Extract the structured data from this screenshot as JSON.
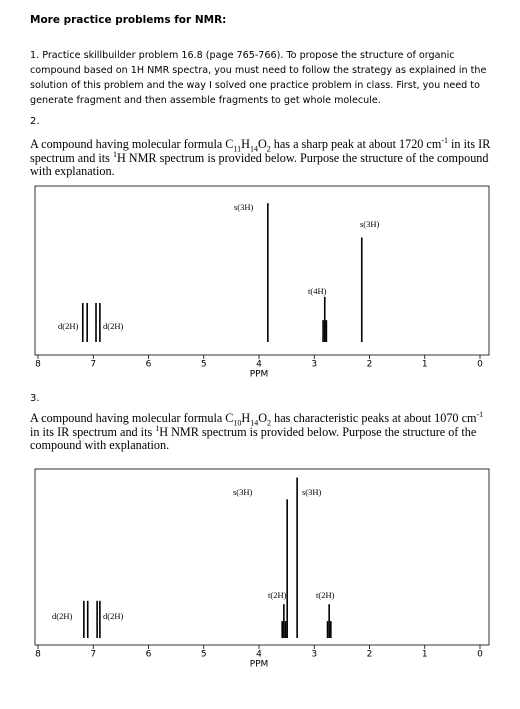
{
  "header": {
    "title": "More practice problems for NMR:"
  },
  "problem1": {
    "text": "1. Practice skillbuilder problem 16.8 (page 765-766).  To propose the structure of organic compound based on 1H NMR spectra, you must need to follow the strategy as explained in the solution of this problem and the way I solved one practice problem in class. First, you need to generate fragment and then assemble fragments to get whole molecule."
  },
  "problem2": {
    "number": "2.",
    "segments": [
      {
        "text": "A compound having molecular formula C"
      },
      {
        "text": "11",
        "style": "sub"
      },
      {
        "text": "H"
      },
      {
        "text": "14",
        "style": "sub"
      },
      {
        "text": "O"
      },
      {
        "text": "2",
        "style": "sub"
      },
      {
        "text": " has a sharp peak at about 1720 cm"
      },
      {
        "text": "-1",
        "style": "sup"
      },
      {
        "text": " in its IR spectrum and its "
      },
      {
        "text": "1",
        "style": "sup"
      },
      {
        "text": "H NMR spectrum is provided below. Purpose the structure of the compound with explanation."
      }
    ],
    "chart_data": {
      "type": "stem",
      "xlabel": "PPM",
      "xlim": [
        8,
        0
      ],
      "xticks": [
        8,
        7,
        6,
        5,
        4,
        3,
        2,
        1,
        0
      ],
      "ylim": [
        0,
        100
      ],
      "color": "#000000",
      "peaks": [
        {
          "label": "d(2H)",
          "ppm": [
            7.19,
            7.11
          ],
          "intensity": [
            25,
            25
          ]
        },
        {
          "label": "d(2H)",
          "ppm": [
            6.95,
            6.88
          ],
          "intensity": [
            25,
            25
          ]
        },
        {
          "label": "s(3H)",
          "ppm": [
            3.84
          ],
          "intensity": [
            89
          ]
        },
        {
          "label": "t(4H)",
          "ppm": [
            2.84,
            2.81,
            2.78
          ],
          "intensity": [
            14,
            29,
            14
          ]
        },
        {
          "label": "s(3H)",
          "ppm": [
            2.14
          ],
          "intensity": [
            67
          ]
        }
      ]
    }
  },
  "problem3": {
    "number": "3.",
    "segments": [
      {
        "text": "A compound having molecular formula C"
      },
      {
        "text": "10",
        "style": "sub"
      },
      {
        "text": "H"
      },
      {
        "text": "14",
        "style": "sub"
      },
      {
        "text": "O"
      },
      {
        "text": "2",
        "style": "sub"
      },
      {
        "text": " has characteristic peaks at about 1070 cm"
      },
      {
        "text": "-1",
        "style": "sup"
      },
      {
        "text": " in its IR spectrum and its "
      },
      {
        "text": "1",
        "style": "sup"
      },
      {
        "text": "H NMR spectrum is provided below. Purpose the structure of the compound with explanation."
      }
    ],
    "chart_data": {
      "type": "stem",
      "xlabel": "PPM",
      "xlim": [
        8,
        0
      ],
      "xticks": [
        8,
        7,
        6,
        5,
        4,
        3,
        2,
        1,
        0
      ],
      "ylim": [
        0,
        100
      ],
      "color": "#000000",
      "peaks": [
        {
          "label": "d(2H)",
          "ppm": [
            7.17,
            7.1
          ],
          "intensity": [
            22,
            22
          ]
        },
        {
          "label": "d(2H)",
          "ppm": [
            6.93,
            6.88
          ],
          "intensity": [
            22,
            22
          ]
        },
        {
          "label": "s(3H)",
          "ppm": [
            3.49
          ],
          "intensity": [
            82
          ]
        },
        {
          "label": "s(3H)",
          "ppm": [
            3.31
          ],
          "intensity": [
            95
          ]
        },
        {
          "label": "t(2H)",
          "ppm": [
            3.58,
            3.55,
            3.52
          ],
          "intensity": [
            10,
            20,
            10
          ]
        },
        {
          "label": "t(2H)",
          "ppm": [
            2.76,
            2.73,
            2.7
          ],
          "intensity": [
            10,
            20,
            10
          ]
        }
      ]
    }
  }
}
